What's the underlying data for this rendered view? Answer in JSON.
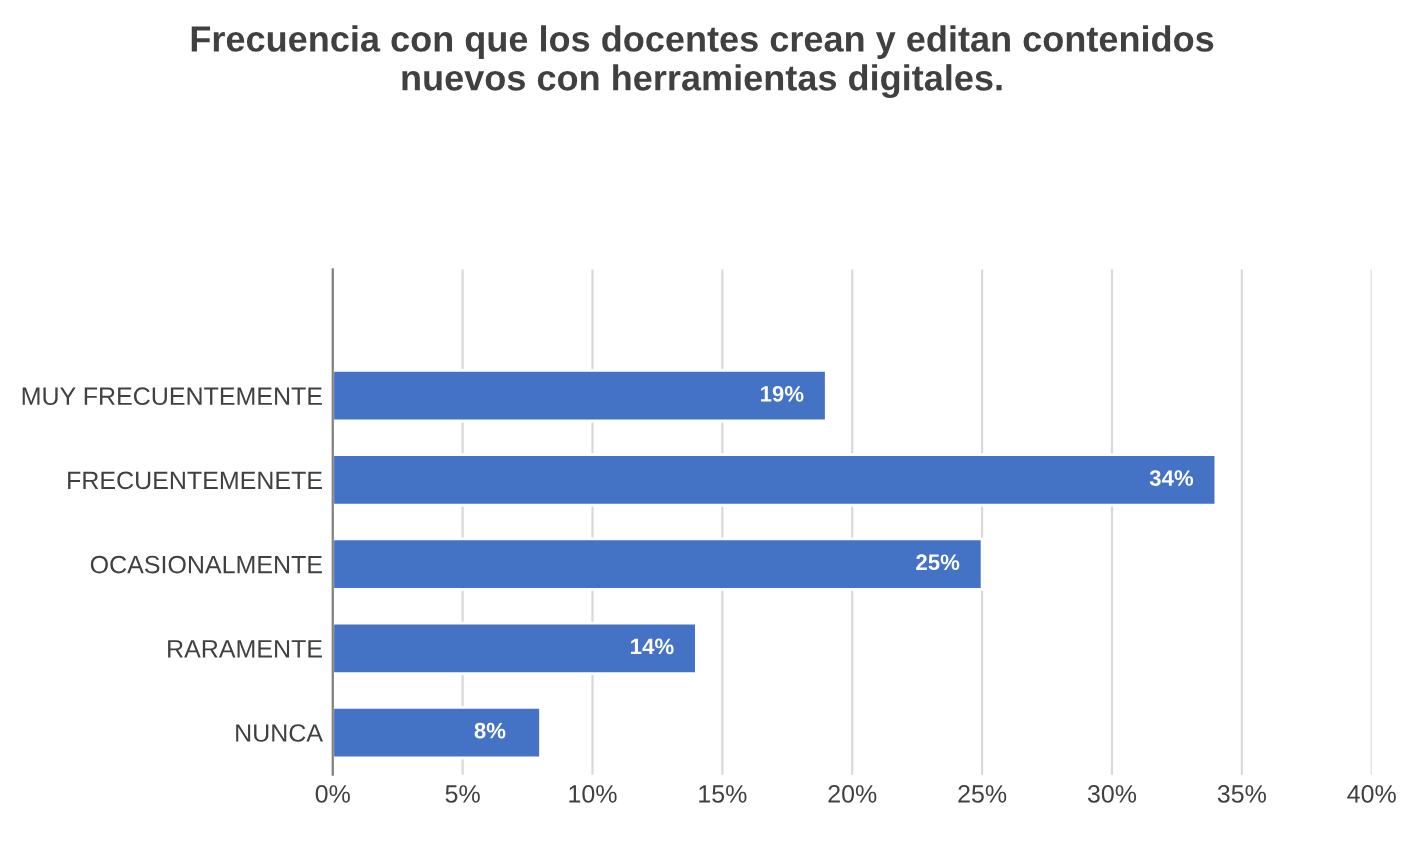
{
  "chart_data": {
    "type": "bar",
    "orientation": "horizontal",
    "title": "Frecuencia con que los docentes crean y editan contenidos\nnuevos con herramientas digitales.",
    "categories": [
      "MUY FRECUENTEMENTE",
      "FRECUENTEMENETE",
      "OCASIONALMENTE",
      "RARAMENTE",
      "NUNCA"
    ],
    "values": [
      19,
      34,
      25,
      14,
      8
    ],
    "value_labels": [
      "19%",
      "34%",
      "25%",
      "14%",
      "8%"
    ],
    "color": "#4472c4",
    "xlim": [
      0,
      40
    ],
    "xticks": [
      {
        "value": 0,
        "label": "0%"
      },
      {
        "value": 5,
        "label": "5%"
      },
      {
        "value": 10,
        "label": "10%"
      },
      {
        "value": 15,
        "label": "15%"
      },
      {
        "value": 20,
        "label": "20%"
      },
      {
        "value": 25,
        "label": "25%"
      },
      {
        "value": 30,
        "label": "30%"
      },
      {
        "value": 35,
        "label": "35%"
      },
      {
        "value": 40,
        "label": "40%"
      }
    ],
    "grid": "x"
  }
}
